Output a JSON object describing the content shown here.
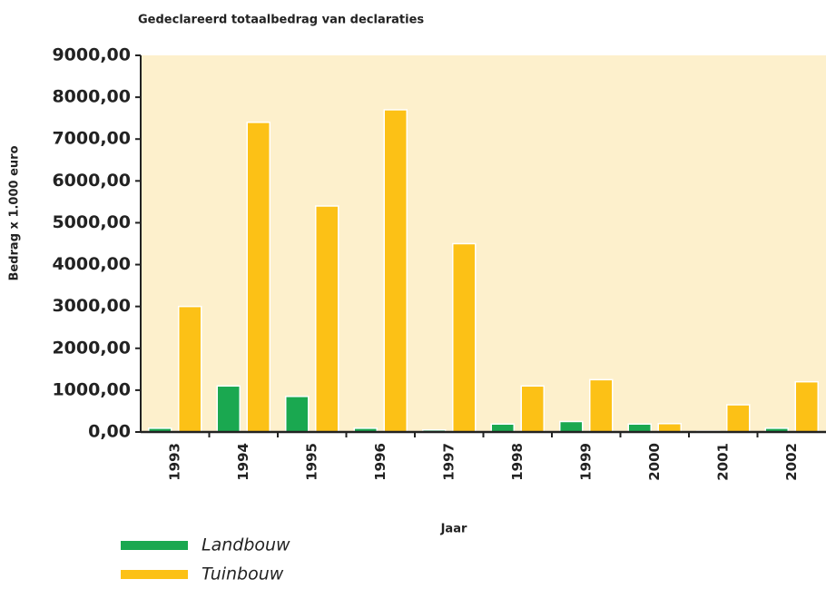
{
  "chart_data": {
    "type": "bar",
    "title": "Gedeclareerd totaalbedrag van declaraties",
    "y_label": "Bedrag x 1.000 euro",
    "x_label": "Jaar",
    "categories": [
      "1993",
      "1994",
      "1995",
      "1996",
      "1997",
      "1998",
      "1999",
      "2000",
      "2001",
      "2002"
    ],
    "series": [
      {
        "name": "Landbouw",
        "color": "#1aa850",
        "values": [
          90,
          1100,
          850,
          90,
          50,
          190,
          250,
          190,
          20,
          90
        ]
      },
      {
        "name": "Tuinbouw",
        "color": "#fcc116",
        "values": [
          3000,
          7400,
          5400,
          7700,
          4500,
          1100,
          1250,
          200,
          650,
          1200
        ]
      }
    ],
    "ylim": [
      0,
      9000
    ],
    "yticks": [
      {
        "value": 0,
        "label": "0,00"
      },
      {
        "value": 1000,
        "label": "1000,00"
      },
      {
        "value": 2000,
        "label": "2000,00"
      },
      {
        "value": 3000,
        "label": "3000,00"
      },
      {
        "value": 4000,
        "label": "4000,00"
      },
      {
        "value": 5000,
        "label": "5000,00"
      },
      {
        "value": 6000,
        "label": "6000,00"
      },
      {
        "value": 7000,
        "label": "7000,00"
      },
      {
        "value": 8000,
        "label": "8000,00"
      },
      {
        "value": 9000,
        "label": "9000,00"
      }
    ],
    "legend": "bottom-left"
  }
}
